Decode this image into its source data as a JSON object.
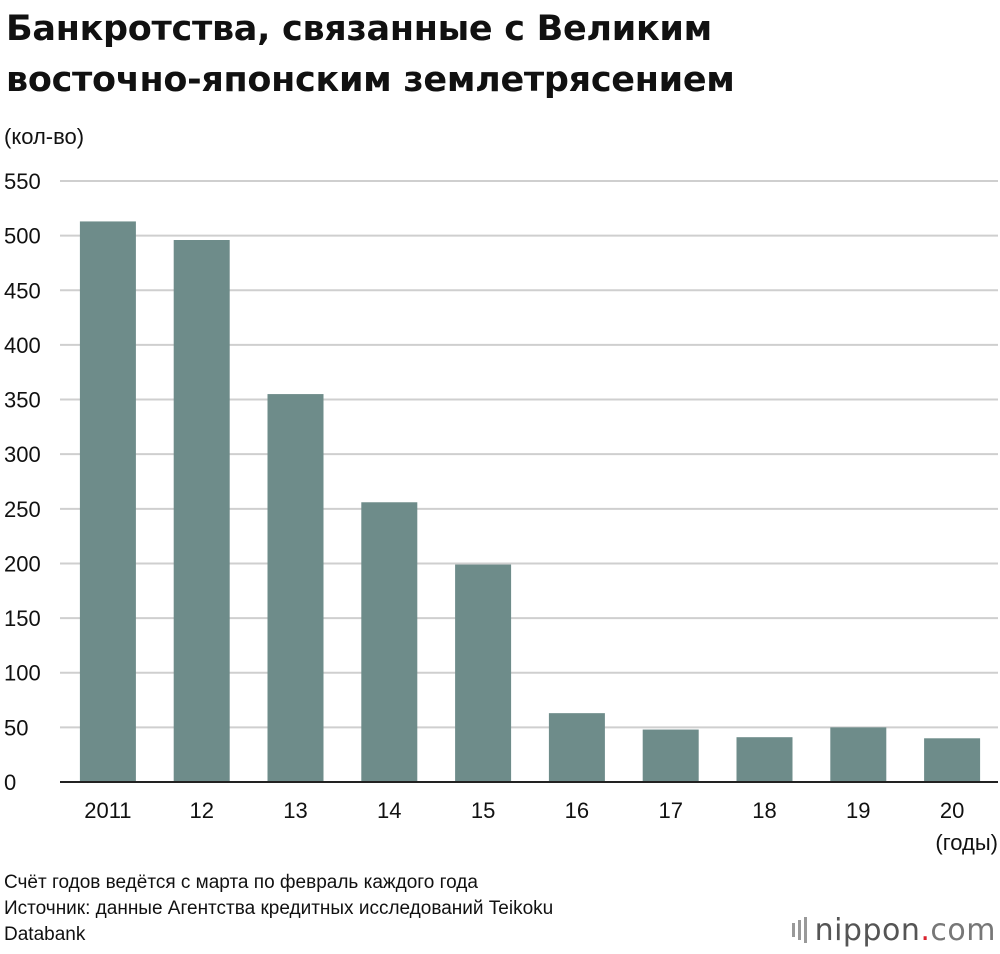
{
  "title_line1": "Банкротства, связанные с Великим",
  "title_line2": "восточно-японским землетрясением",
  "y_unit": "(кол-во)",
  "x_unit": "(годы)",
  "footer": {
    "note": "Счёт годов ведётся с марта по февраль каждого года",
    "source_line1": "Источник: данные Агентства кредитных исследований Teikoku",
    "source_line2": "Databank"
  },
  "logo": {
    "name": "nippon",
    "dot": ".",
    "tld": "com"
  },
  "colors": {
    "bar": "#6e8c8a",
    "grid": "#cfcfcf",
    "axis": "#222222"
  },
  "chart_data": {
    "type": "bar",
    "categories": [
      "2011",
      "12",
      "13",
      "14",
      "15",
      "16",
      "17",
      "18",
      "19",
      "20"
    ],
    "values": [
      513,
      496,
      355,
      256,
      199,
      63,
      48,
      41,
      50,
      40
    ],
    "ylim": [
      0,
      550
    ],
    "yticks": [
      0,
      50,
      100,
      150,
      200,
      250,
      300,
      350,
      400,
      450,
      500,
      550
    ],
    "grid": true,
    "legend": "none"
  }
}
